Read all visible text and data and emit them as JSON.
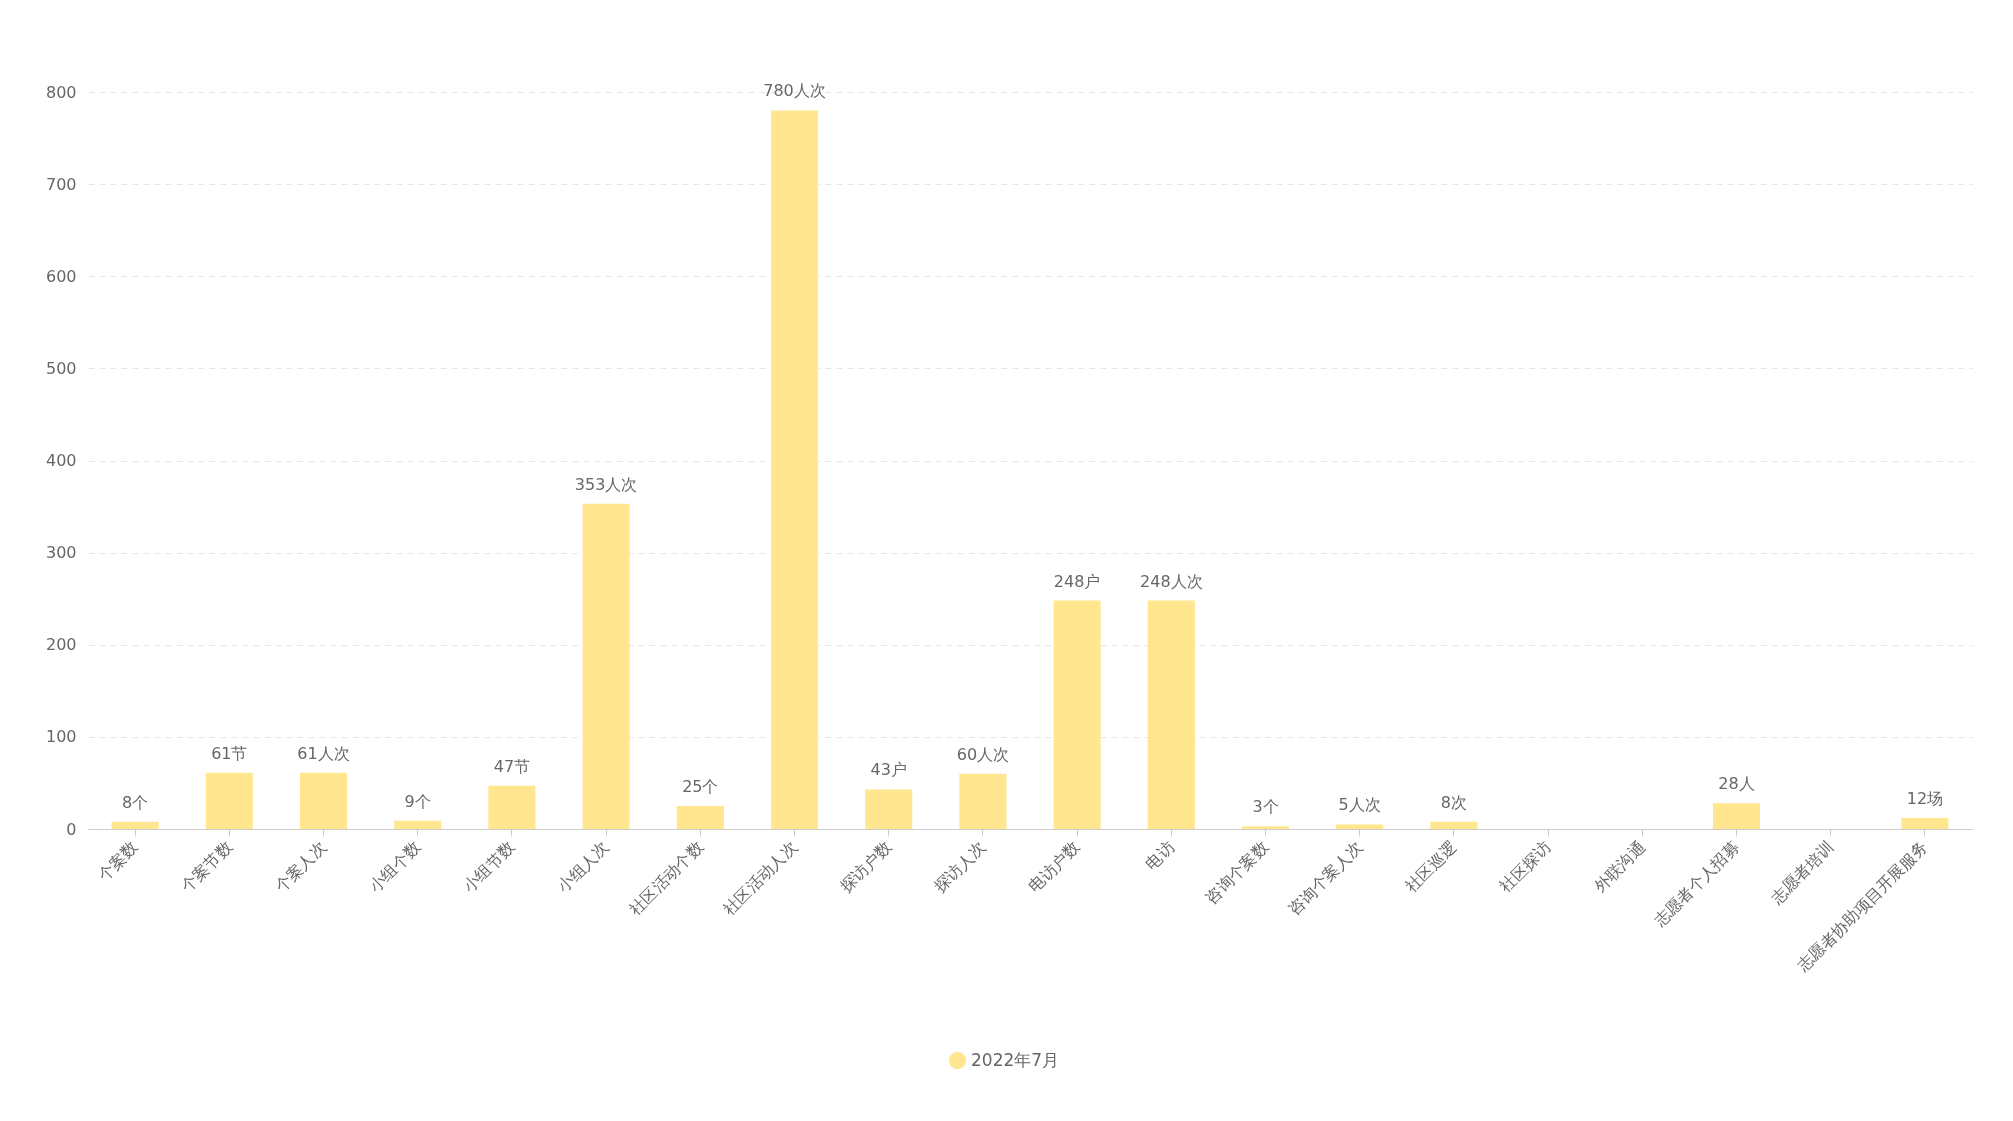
{
  "chart_data": {
    "type": "bar",
    "categories": [
      "个案数",
      "个案节数",
      "个案人次",
      "小组个数",
      "小组节数",
      "小组人次",
      "社区活动个数",
      "社区活动人次",
      "探访户数",
      "探访人次",
      "电访户数",
      "电访",
      "咨询个案数",
      "咨询个案人次",
      "社区巡逻",
      "社区探访",
      "外联沟通",
      "志愿者个人招募",
      "志愿者培训",
      "志愿者协助项目开展服务"
    ],
    "series": [
      {
        "name": "2022年7月",
        "color": "#ffe68f",
        "values": [
          8,
          61,
          61,
          9,
          47,
          353,
          25,
          780,
          43,
          60,
          248,
          248,
          3,
          5,
          8,
          null,
          null,
          28,
          null,
          12
        ],
        "value_labels": [
          "8个",
          "61节",
          "61人次",
          "9个",
          "47节",
          "353人次",
          "25个",
          "780人次",
          "43户",
          "60人次",
          "248户",
          "248人次",
          "3个",
          "5人次",
          "8次",
          null,
          null,
          "28人",
          null,
          "12场"
        ]
      }
    ],
    "ylim": [
      0,
      800
    ],
    "yticks": [
      0,
      100,
      200,
      300,
      400,
      500,
      600,
      700,
      800
    ],
    "grid": "y",
    "legend": "bottom"
  }
}
